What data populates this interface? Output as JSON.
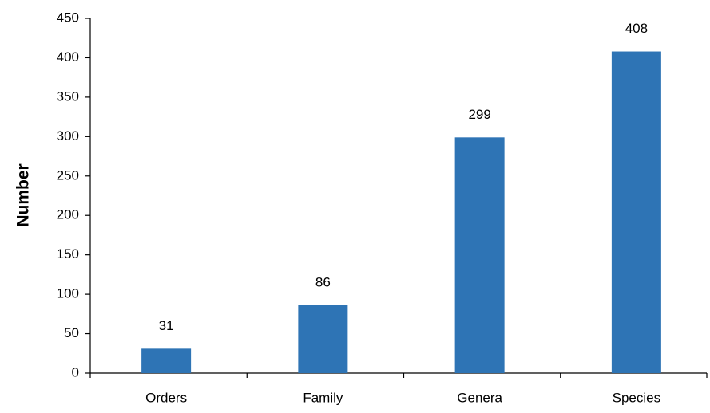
{
  "chart_data": {
    "type": "bar",
    "y_label": "Number",
    "categories": [
      "Orders",
      "Family",
      "Genera",
      "Species"
    ],
    "values": [
      31,
      86,
      299,
      408
    ],
    "color": "#2e74b5",
    "ylim": [
      0,
      450
    ],
    "yticks": [
      0,
      50,
      100,
      150,
      200,
      250,
      300,
      350,
      400,
      450
    ],
    "grid": false,
    "data_labels": true
  }
}
